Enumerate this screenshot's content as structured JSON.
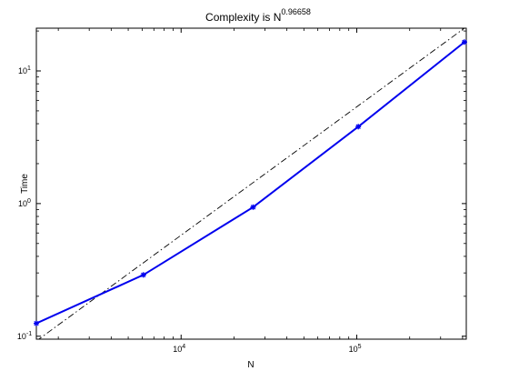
{
  "chart_data": {
    "type": "line",
    "title": {
      "main": "Complexity is N",
      "exponent": "0.96658"
    },
    "xlabel": "N",
    "ylabel": "Time",
    "xscale": "log",
    "yscale": "log",
    "xlim": [
      1500,
      420000
    ],
    "ylim": [
      0.095,
      21
    ],
    "grid": false,
    "x_ticks": [
      {
        "value": 10000,
        "base": "10",
        "exp": "4"
      },
      {
        "value": 100000,
        "base": "10",
        "exp": "5"
      }
    ],
    "y_ticks": [
      {
        "value": 0.1,
        "base": "10",
        "exp": "-1"
      },
      {
        "value": 1,
        "base": "10",
        "exp": "0"
      },
      {
        "value": 10,
        "base": "10",
        "exp": "1"
      }
    ],
    "series": [
      {
        "style": "measured",
        "color": "#0000ee",
        "points": [
          {
            "x": 1500,
            "y": 0.125
          },
          {
            "x": 6100,
            "y": 0.29
          },
          {
            "x": 25700,
            "y": 0.94
          },
          {
            "x": 102000,
            "y": 3.8
          },
          {
            "x": 410000,
            "y": 16.5
          }
        ]
      },
      {
        "style": "fit",
        "color": "#000000",
        "points": [
          {
            "x": 1500,
            "y": 0.092
          },
          {
            "x": 420000,
            "y": 21.5
          }
        ]
      }
    ]
  }
}
